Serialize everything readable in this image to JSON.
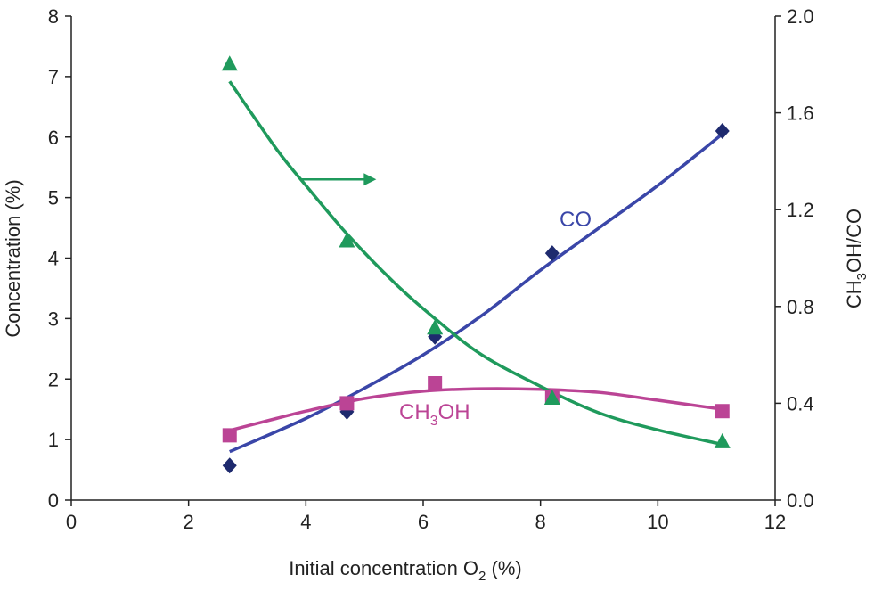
{
  "chart_data": {
    "type": "scatter",
    "title": "",
    "xlabel": {
      "main": "Initial concentration O",
      "sub": "2",
      "tail": " (%)"
    },
    "ylabel_left": "Concentration (%)",
    "ylabel_right": {
      "a": "CH",
      "sub": "3",
      "b": "OH/CO"
    },
    "xlim": [
      0,
      12
    ],
    "ylim_left": [
      0,
      8
    ],
    "ylim_right": [
      0,
      2
    ],
    "x_ticks": [
      "0",
      "2",
      "4",
      "6",
      "8",
      "10",
      "12"
    ],
    "y_left_ticks": [
      "0",
      "1",
      "2",
      "3",
      "4",
      "5",
      "6",
      "7",
      "8"
    ],
    "y_right_ticks": [
      "0.0",
      "0.4",
      "0.8",
      "1.2",
      "1.6",
      "2.0"
    ],
    "grid": false,
    "series": [
      {
        "name": "CO",
        "axis": "left",
        "marker": "diamond",
        "color": "#1e2a6e",
        "line_color": "#3a46a8",
        "x": [
          2.7,
          4.7,
          6.2,
          8.2,
          11.1
        ],
        "y": [
          0.57,
          1.46,
          2.7,
          4.08,
          6.1
        ],
        "fit": [
          [
            2.7,
            0.8
          ],
          [
            4,
            1.35
          ],
          [
            5,
            1.85
          ],
          [
            6,
            2.4
          ],
          [
            7,
            3.05
          ],
          [
            8,
            3.8
          ],
          [
            9,
            4.5
          ],
          [
            10,
            5.2
          ],
          [
            11.1,
            6.05
          ]
        ]
      },
      {
        "name": "CH3OH",
        "axis": "left",
        "marker": "square",
        "color": "#bb4495",
        "line_color": "#bb4495",
        "x": [
          2.7,
          4.7,
          6.2,
          8.2,
          11.1
        ],
        "y": [
          1.07,
          1.6,
          1.93,
          1.71,
          1.47
        ],
        "fit": [
          [
            2.7,
            1.15
          ],
          [
            3.5,
            1.35
          ],
          [
            4,
            1.47
          ],
          [
            5,
            1.68
          ],
          [
            6,
            1.8
          ],
          [
            7,
            1.84
          ],
          [
            8,
            1.83
          ],
          [
            9,
            1.78
          ],
          [
            10,
            1.65
          ],
          [
            11.1,
            1.5
          ]
        ]
      },
      {
        "name": "CH3OH/CO",
        "axis": "right",
        "marker": "triangle",
        "color": "#1f9a5c",
        "line_color": "#1f9a5c",
        "x": [
          2.7,
          4.7,
          6.2,
          8.2,
          11.1
        ],
        "y": [
          1.8,
          1.07,
          0.71,
          0.42,
          0.24
        ],
        "fit": [
          [
            2.7,
            1.73
          ],
          [
            3.5,
            1.45
          ],
          [
            4,
            1.3
          ],
          [
            4.7,
            1.1
          ],
          [
            5.5,
            0.9
          ],
          [
            6.2,
            0.75
          ],
          [
            7,
            0.6
          ],
          [
            8,
            0.47
          ],
          [
            9,
            0.36
          ],
          [
            10,
            0.29
          ],
          [
            11.1,
            0.23
          ]
        ]
      }
    ],
    "annotations": {
      "co_label": "CO",
      "ch3oh_label": {
        "a": "CH",
        "sub": "3",
        "b": "OH"
      },
      "arrow": {
        "from": [
          3.9,
          5.3
        ],
        "to": [
          5.2,
          5.3
        ],
        "points_to": "right axis",
        "color": "#1f9a5c"
      }
    }
  }
}
